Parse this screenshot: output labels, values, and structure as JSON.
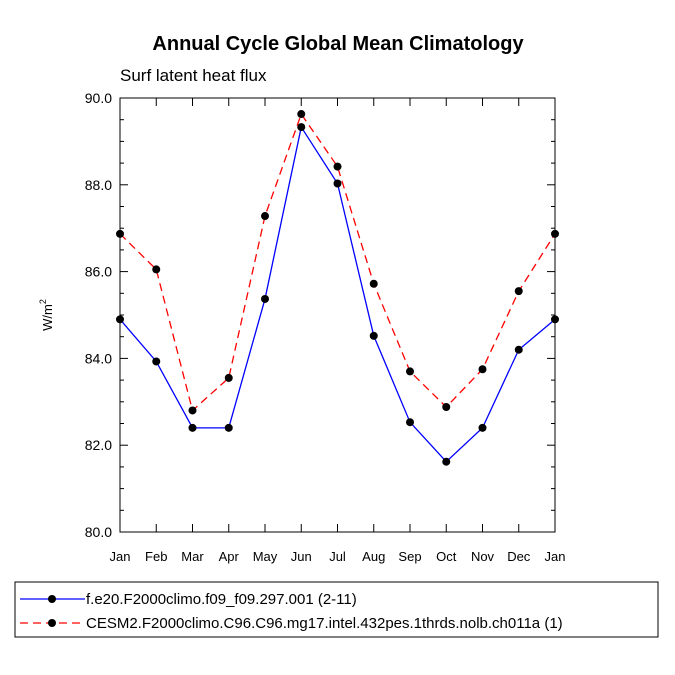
{
  "chart_data": {
    "type": "line",
    "title": "Annual Cycle Global Mean Climatology",
    "subtitle": "Surf latent heat flux",
    "ylabel": "W/m",
    "ylabel_sup": "2",
    "xlabel": "",
    "categories": [
      "Jan",
      "Feb",
      "Mar",
      "Apr",
      "May",
      "Jun",
      "Jul",
      "Aug",
      "Sep",
      "Oct",
      "Nov",
      "Dec",
      "Jan"
    ],
    "ylim": [
      80.0,
      90.0
    ],
    "yticks": [
      80.0,
      82.0,
      84.0,
      86.0,
      88.0,
      90.0
    ],
    "ytick_labels": [
      "80.0",
      "82.0",
      "84.0",
      "86.0",
      "88.0",
      "90.0"
    ],
    "series": [
      {
        "name": "f.e20.F2000climo.f09_f09.297.001 (2-11)",
        "color": "#0000ff",
        "dash": "solid",
        "values": [
          84.9,
          83.93,
          82.4,
          82.4,
          85.37,
          89.33,
          88.03,
          84.52,
          82.53,
          81.62,
          82.4,
          84.2,
          84.9
        ]
      },
      {
        "name": "CESM2.F2000climo.C96.C96.mg17.intel.432pes.1thrds.nolb.ch011a (1)",
        "color": "#ff0000",
        "dash": "dashed",
        "values": [
          86.87,
          86.05,
          82.8,
          83.55,
          87.28,
          89.63,
          88.42,
          85.72,
          83.7,
          82.88,
          83.75,
          85.55,
          86.87
        ]
      }
    ]
  }
}
